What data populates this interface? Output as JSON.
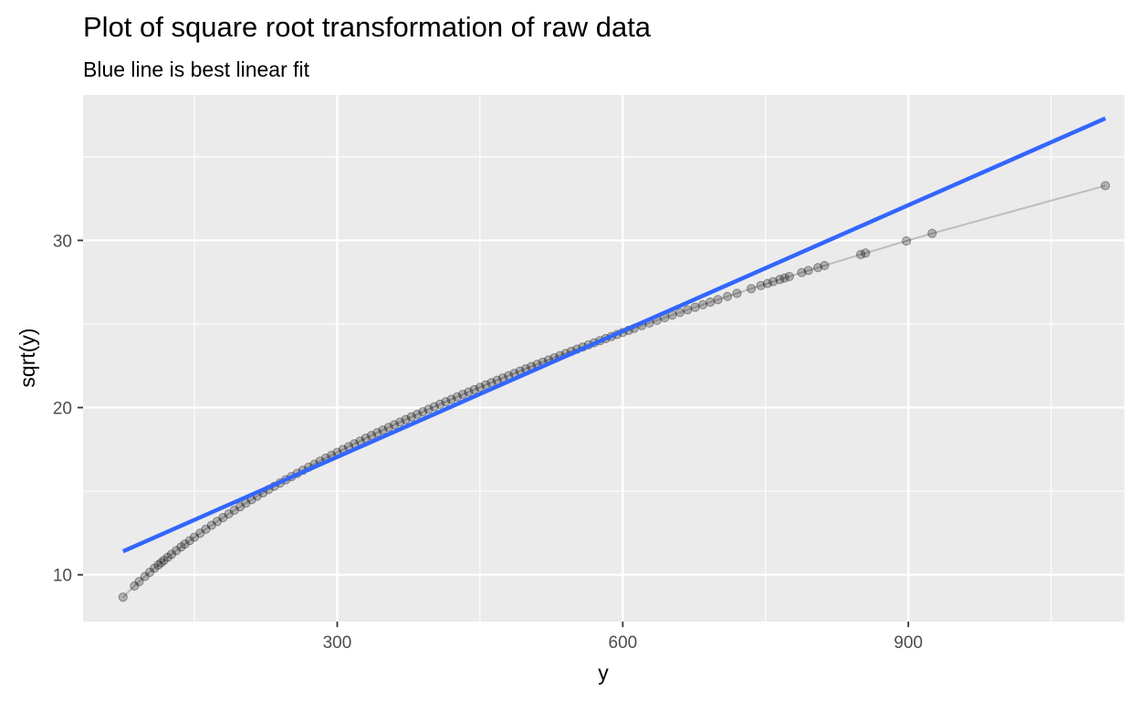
{
  "chart_data": {
    "type": "scatter",
    "title": "Plot of square root transformation of raw data",
    "subtitle": "Blue line is best linear fit",
    "xlabel": "y",
    "ylabel": "sqrt(y)",
    "xlim": [
      33,
      1127
    ],
    "ylim": [
      7.2,
      38.7
    ],
    "x_major_ticks": [
      300,
      600,
      900
    ],
    "x_minor_ticks": [
      150,
      450,
      750,
      1050
    ],
    "y_major_ticks": [
      10,
      20,
      30
    ],
    "y_minor_ticks": [
      15,
      25,
      35
    ],
    "x_tick_labels": [
      "300",
      "600",
      "900"
    ],
    "y_tick_labels": [
      "10",
      "20",
      "30"
    ],
    "grid": true,
    "legend": "none",
    "colors": {
      "panel_background": "#ebebeb",
      "grid": "#ffffff",
      "points": "#000000",
      "connecting_line": "#bdbdbd",
      "fit_line": "#3366ff",
      "tick_label": "#4d4d4d",
      "tick_mark": "#333333"
    },
    "series": [
      {
        "kind": "points",
        "x": [
          75,
          87,
          92,
          98,
          103,
          108,
          112,
          115,
          118,
          122,
          126,
          131,
          136,
          140,
          145,
          150,
          156,
          162,
          168,
          174,
          180,
          186,
          192,
          198,
          204,
          210,
          216,
          222,
          228,
          234,
          240,
          246,
          252,
          258,
          264,
          270,
          276,
          282,
          288,
          294,
          300,
          306,
          312,
          318,
          324,
          330,
          336,
          342,
          348,
          354,
          360,
          366,
          372,
          378,
          384,
          390,
          396,
          402,
          408,
          414,
          420,
          426,
          432,
          438,
          444,
          450,
          456,
          462,
          468,
          474,
          480,
          486,
          492,
          498,
          504,
          510,
          516,
          522,
          528,
          534,
          540,
          546,
          552,
          558,
          564,
          570,
          576,
          582,
          588,
          594,
          600,
          606,
          612,
          620,
          628,
          636,
          644,
          652,
          660,
          668,
          676,
          684,
          692,
          700,
          710,
          720,
          735,
          745,
          752,
          758,
          765,
          770,
          775,
          788,
          795,
          805,
          812,
          850,
          855,
          898,
          925,
          1107
        ]
      },
      {
        "kind": "fit-line",
        "x": [
          75,
          1107
        ],
        "y": [
          11.4,
          37.3
        ]
      }
    ]
  }
}
